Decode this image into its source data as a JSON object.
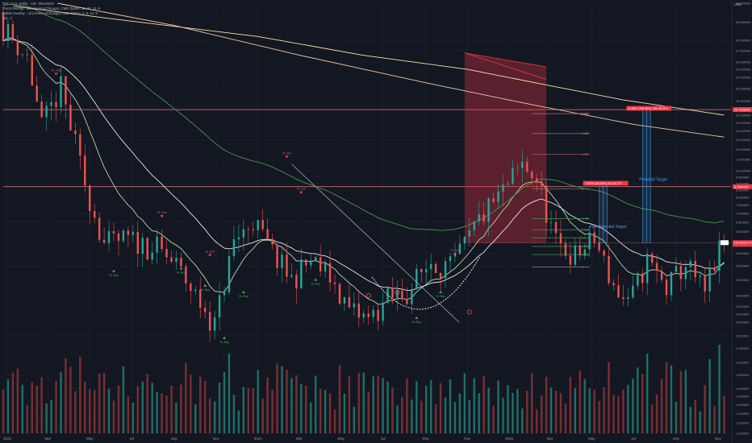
{
  "header": {
    "symbol_line": "FET / U.S. Dollar · 1W · BINANCE",
    "indicator_1": "Trend Overlay · ult (America/Chicago), CME Option, 12, 26, 12, 9",
    "indicator_2": "Kabba Overlay · ult (America/Chicago), CME Option, 2, 9, 12, 9",
    "indicator_3": "Vol · 0",
    "currency": "USD"
  },
  "colors": {
    "background": "#131722",
    "grid": "#1f2330",
    "candle_up": "#26a69a",
    "candle_down": "#ef5350",
    "vol_up": "#1f6f67",
    "vol_down": "#7a2f32",
    "ma_white": "#e8e8e8",
    "ma_green": "#3f9c45",
    "ma_light_green": "#b7d7a8",
    "ma_yellow": "#f5e6a3",
    "ma_orange": "#f6c9a0",
    "level_red": "#f23645",
    "fib_white": "#9e9e9e",
    "target_blue": "#42a5f5",
    "label_red": "#f23645",
    "label_gray": "#2a2e39"
  },
  "chart_data": {
    "type": "candlestick",
    "y_scale": "log",
    "ylim": [
      1.1,
      41
    ],
    "x_range": [
      "2022-12-26",
      "2025-11-20"
    ],
    "x_tick_labels": [
      "2023",
      "Mar",
      "May",
      "Jul",
      "Sep",
      "Nov",
      "2024",
      "Mar",
      "May",
      "Jul",
      "Sep",
      "Nov",
      "2025",
      "Mar",
      "May",
      "Jul",
      "Sep",
      "Nov"
    ],
    "y_tick_labels": [
      "41.000000",
      "35.000000",
      "30.000000",
      "27.500000",
      "25.000000",
      "23.500000",
      "22.000000",
      "20.000000",
      "18.000000",
      "17.000000",
      "16.000000",
      "15.000000",
      "14.000000",
      "13.000000",
      "12.000000",
      "11.000000",
      "10.000000",
      "9.500000",
      "9.000000",
      "8.500000",
      "8.000000",
      "7.500000",
      "7.000000",
      "6.500000",
      "6.000000",
      "5.500000",
      "5.000000",
      "4.500000",
      "4.000000",
      "3.500000",
      "3.200000",
      "3.000000",
      "2.800000",
      "2.500000",
      "2.250000",
      "2.000000",
      "1.800000",
      "1.600000",
      "1.500000",
      "1.400000",
      "1.300000",
      "1.200000",
      "1.100000"
    ],
    "anchor_closes": [
      [
        "2022-12-26",
        33.5
      ],
      [
        "2023-01-30",
        26.0
      ],
      [
        "2023-02-20",
        14.5
      ],
      [
        "2023-03-20",
        20.0
      ],
      [
        "2023-04-24",
        9.0
      ],
      [
        "2023-05-22",
        5.4
      ],
      [
        "2023-06-26",
        5.6
      ],
      [
        "2023-08-07",
        5.2
      ],
      [
        "2023-09-04",
        4.5
      ],
      [
        "2023-10-09",
        3.3
      ],
      [
        "2023-10-30",
        2.75
      ],
      [
        "2023-11-27",
        5.5
      ],
      [
        "2023-12-25",
        6.6
      ],
      [
        "2024-01-22",
        5.0
      ],
      [
        "2024-02-19",
        4.0
      ],
      [
        "2024-03-18",
        4.7
      ],
      [
        "2024-04-15",
        4.1
      ],
      [
        "2024-05-13",
        3.1
      ],
      [
        "2024-06-10",
        2.85
      ],
      [
        "2024-07-08",
        3.4
      ],
      [
        "2024-08-05",
        3.6
      ],
      [
        "2024-09-09",
        4.7
      ],
      [
        "2024-10-07",
        4.4
      ],
      [
        "2024-10-28",
        5.3
      ],
      [
        "2024-11-18",
        6.6
      ],
      [
        "2024-12-23",
        8.4
      ],
      [
        "2025-01-20",
        10.5
      ],
      [
        "2025-02-10",
        9.4
      ],
      [
        "2025-03-10",
        5.4
      ],
      [
        "2025-04-07",
        4.9
      ],
      [
        "2025-05-05",
        5.6
      ],
      [
        "2025-06-02",
        3.8
      ],
      [
        "2025-06-23",
        3.2
      ],
      [
        "2025-07-21",
        4.7
      ],
      [
        "2025-08-18",
        3.7
      ],
      [
        "2025-09-15",
        4.6
      ],
      [
        "2025-10-13",
        3.55
      ],
      [
        "2025-10-27",
        4.6
      ],
      [
        "2025-11-10",
        5.5
      ]
    ],
    "horizontal_levels": [
      {
        "label": "16.7538800",
        "value": 16.75
      },
      {
        "label": "8.7554457",
        "value": 8.76
      }
    ],
    "current_price_label": "FET/USD 5.4700",
    "fib_levels": [
      {
        "label": "1.618",
        "value": 16.2
      },
      {
        "label": "1.414",
        "value": 13.7
      },
      {
        "label": "1.272",
        "value": 11.5
      },
      {
        "label": "1",
        "value": 8.6
      },
      {
        "label": "0.786",
        "value": 6.7
      },
      {
        "label": "0.618",
        "value": 6.1
      },
      {
        "label": "0.5",
        "value": 5.7
      },
      {
        "label": "0.382",
        "value": 5.3
      },
      {
        "label": "0.236",
        "value": 4.95
      },
      {
        "label": "0",
        "value": 4.45
      }
    ],
    "target_labels": [
      {
        "label": "7.86905 (85.98%) 35,432,727",
        "value": 9.0
      },
      {
        "label": "11.9967 (198.98%) 135,764,973",
        "value": 16.9
      }
    ],
    "annotations": [
      "First Potential Target",
      "Potential Target"
    ],
    "signal_labels": {
      "sell": "St. Sell",
      "buy": "St. Buy"
    }
  }
}
